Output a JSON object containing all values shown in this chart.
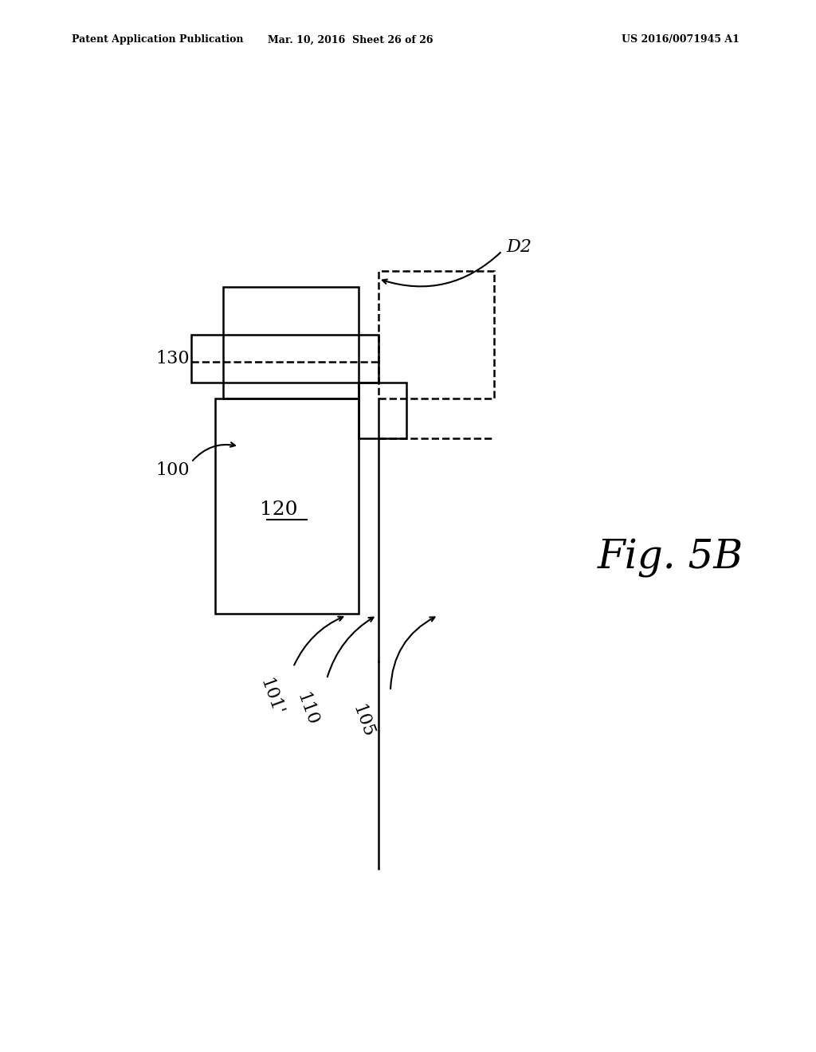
{
  "bg_color": "#ffffff",
  "line_color": "#000000",
  "header_left": "Patent Application Publication",
  "header_mid": "Mar. 10, 2016  Sheet 26 of 26",
  "header_right": "US 2016/0071945 A1",
  "fig_label": "Fig. 5B",
  "label_D2": "D2",
  "label_130": "130",
  "label_100": "100",
  "label_120": "120",
  "label_101p": "101'",
  "label_110": "110",
  "label_105": "105"
}
